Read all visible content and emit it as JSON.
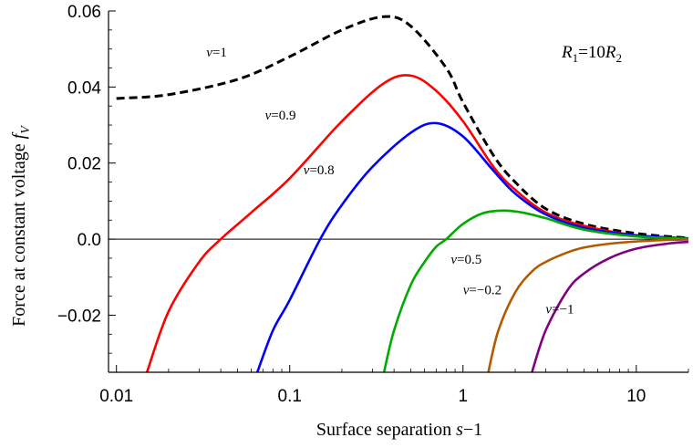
{
  "chart_data": {
    "type": "line",
    "xlabel": "Surface separation s−1",
    "xlabel_parts": {
      "text": "Surface separation ",
      "var": "s",
      "rest": "−1"
    },
    "ylabel": "Force at constant voltage f_V",
    "ylabel_parts": {
      "text": "Force at constant  voltage  ",
      "var": "f",
      "sub": "V"
    },
    "x_scale": "log",
    "xlim": [
      0.009,
      20
    ],
    "ylim": [
      -0.035,
      0.06
    ],
    "x_ticks": [
      {
        "value": 0.01,
        "label": "0.01"
      },
      {
        "value": 0.1,
        "label": "0.1"
      },
      {
        "value": 1,
        "label": "1"
      },
      {
        "value": 10,
        "label": "10"
      }
    ],
    "y_ticks": [
      {
        "value": 0.06,
        "label": "0.06"
      },
      {
        "value": 0.04,
        "label": "0.04"
      },
      {
        "value": 0.02,
        "label": "0.02"
      },
      {
        "value": 0.0,
        "label": "0.0"
      },
      {
        "value": -0.02,
        "label": "−0.02"
      }
    ],
    "annotation": {
      "R": "R",
      "sub1": "1",
      "eq": "=10",
      "sub2": "2"
    },
    "series": [
      {
        "name": "v=1",
        "color": "#000000",
        "style": "dashed",
        "x": [
          0.01,
          0.02,
          0.05,
          0.1,
          0.2,
          0.35,
          0.5,
          0.8,
          1.0,
          1.5,
          2,
          3,
          5,
          10,
          20
        ],
        "y": [
          0.037,
          0.038,
          0.042,
          0.048,
          0.055,
          0.0585,
          0.056,
          0.045,
          0.036,
          0.022,
          0.015,
          0.008,
          0.004,
          0.0015,
          0.0003
        ]
      },
      {
        "name": "v=0.9",
        "color": "#ff0000",
        "style": "solid",
        "x": [
          0.015,
          0.02,
          0.03,
          0.04,
          0.06,
          0.1,
          0.2,
          0.35,
          0.5,
          0.7,
          1.0,
          1.5,
          2,
          3,
          5,
          10,
          20
        ],
        "y": [
          -0.035,
          -0.019,
          -0.006,
          0.0,
          0.007,
          0.016,
          0.031,
          0.041,
          0.043,
          0.039,
          0.031,
          0.019,
          0.013,
          0.007,
          0.0035,
          0.001,
          0.0002
        ]
      },
      {
        "name": "v=0.8",
        "color": "#0000ff",
        "style": "solid",
        "x": [
          0.065,
          0.08,
          0.1,
          0.15,
          0.2,
          0.3,
          0.5,
          0.7,
          1.0,
          1.5,
          2,
          3,
          5,
          10,
          20
        ],
        "y": [
          -0.035,
          -0.024,
          -0.016,
          0.0,
          0.009,
          0.019,
          0.028,
          0.0305,
          0.027,
          0.018,
          0.012,
          0.0065,
          0.003,
          0.001,
          0.0002
        ]
      },
      {
        "name": "v=0.5",
        "color": "#00aa00",
        "style": "solid",
        "x": [
          0.35,
          0.4,
          0.5,
          0.6,
          0.7,
          0.8,
          1.0,
          1.3,
          1.7,
          2.2,
          3,
          5,
          10,
          20
        ],
        "y": [
          -0.035,
          -0.024,
          -0.012,
          -0.006,
          -0.002,
          0.0,
          0.004,
          0.0068,
          0.0075,
          0.007,
          0.0055,
          0.0025,
          0.0007,
          0.0001
        ]
      },
      {
        "name": "v=−0.2",
        "color": "#b35900",
        "style": "solid",
        "x": [
          1.4,
          1.6,
          2,
          2.5,
          3,
          4,
          5,
          7,
          10,
          15,
          20
        ],
        "y": [
          -0.035,
          -0.024,
          -0.014,
          -0.0085,
          -0.006,
          -0.0035,
          -0.0022,
          -0.0012,
          -0.0006,
          -0.0002,
          -0.0001
        ]
      },
      {
        "name": "v=−1",
        "color": "#800080",
        "style": "solid",
        "x": [
          2.5,
          3,
          4,
          5,
          7,
          10,
          15,
          20
        ],
        "y": [
          -0.035,
          -0.024,
          -0.0135,
          -0.009,
          -0.005,
          -0.0025,
          -0.0012,
          -0.0007
        ]
      }
    ],
    "labels": [
      {
        "var": "v",
        "text": "=1"
      },
      {
        "var": "v",
        "text": "=0.9"
      },
      {
        "var": "v",
        "text": "=0.8"
      },
      {
        "var": "v",
        "text": "=0.5"
      },
      {
        "var": "v",
        "text": "=−0.2"
      },
      {
        "var": "v",
        "text": "=−1"
      }
    ]
  }
}
